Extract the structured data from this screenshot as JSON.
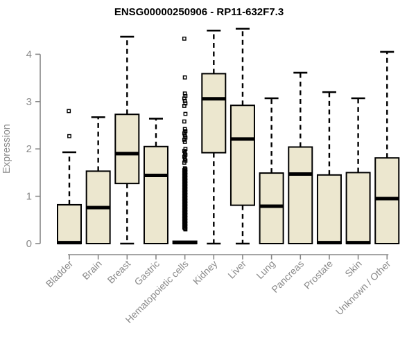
{
  "title": "ENSG00000250906 - RP11-632F7.3",
  "colors": {
    "box_fill": "#ece7cf",
    "box_stroke": "#000000",
    "axis_line": "#878787",
    "axis_text": "#8a8a8a",
    "title_text": "#000000"
  },
  "chart_data": {
    "type": "boxplot",
    "title": "ENSG00000250906 - RP11-632F7.3",
    "xlabel": "",
    "ylabel": "Expression",
    "ylim": [
      0,
      4.6
    ],
    "yticks": [
      0,
      1,
      2,
      3,
      4
    ],
    "grid": false,
    "legend": "none",
    "categories": [
      "Bladder",
      "Brain",
      "Breast",
      "Gastric",
      "Hematopoietic cells",
      "Kidney",
      "Liver",
      "Lung",
      "Pancreas",
      "Prostate",
      "Skin",
      "Unknown / Other"
    ],
    "series": [
      {
        "name": "Bladder",
        "whisker_low": 0,
        "q1": 0,
        "median": 0.02,
        "q3": 0.82,
        "whisker_high": 1.93,
        "outliers": [
          2.8,
          2.27
        ],
        "outlier_bands": []
      },
      {
        "name": "Brain",
        "whisker_low": 0,
        "q1": 0,
        "median": 0.76,
        "q3": 1.53,
        "whisker_high": 2.67,
        "outliers": [],
        "outlier_bands": []
      },
      {
        "name": "Breast",
        "whisker_low": 0,
        "q1": 1.27,
        "median": 1.9,
        "q3": 2.73,
        "whisker_high": 4.37,
        "outliers": [],
        "outlier_bands": []
      },
      {
        "name": "Gastric",
        "whisker_low": 0,
        "q1": 0,
        "median": 1.44,
        "q3": 2.05,
        "whisker_high": 2.64,
        "outliers": [],
        "outlier_bands": []
      },
      {
        "name": "Hematopoietic cells",
        "whisker_low": 0,
        "q1": 0,
        "median": 0.02,
        "q3": 0.05,
        "whisker_high": 0.05,
        "outliers": [
          4.33,
          3.51,
          2.74,
          2.58
        ],
        "outlier_bands": [
          {
            "from": 3.17,
            "to": 2.91,
            "count": 6
          },
          {
            "from": 2.42,
            "to": 2.15,
            "count": 7
          },
          {
            "from": 2.0,
            "to": 1.71,
            "count": 8
          },
          {
            "from": 1.59,
            "to": 0.3,
            "count": 65
          }
        ]
      },
      {
        "name": "Kidney",
        "whisker_low": 0,
        "q1": 1.92,
        "median": 3.06,
        "q3": 3.59,
        "whisker_high": 4.5,
        "outliers": [],
        "outlier_bands": []
      },
      {
        "name": "Liver",
        "whisker_low": 0,
        "q1": 0.81,
        "median": 2.21,
        "q3": 2.92,
        "whisker_high": 4.54,
        "outliers": [],
        "outlier_bands": []
      },
      {
        "name": "Lung",
        "whisker_low": 0,
        "q1": 0,
        "median": 0.79,
        "q3": 1.49,
        "whisker_high": 3.07,
        "outliers": [],
        "outlier_bands": []
      },
      {
        "name": "Pancreas",
        "whisker_low": 0,
        "q1": 0,
        "median": 1.47,
        "q3": 2.04,
        "whisker_high": 3.61,
        "outliers": [],
        "outlier_bands": []
      },
      {
        "name": "Prostate",
        "whisker_low": 0,
        "q1": 0,
        "median": 0.02,
        "q3": 1.45,
        "whisker_high": 3.2,
        "outliers": [],
        "outlier_bands": []
      },
      {
        "name": "Skin",
        "whisker_low": 0,
        "q1": 0,
        "median": 0.02,
        "q3": 1.5,
        "whisker_high": 3.07,
        "outliers": [],
        "outlier_bands": []
      },
      {
        "name": "Unknown / Other",
        "whisker_low": 0,
        "q1": 0,
        "median": 0.95,
        "q3": 1.81,
        "whisker_high": 4.05,
        "outliers": [],
        "outlier_bands": []
      }
    ]
  }
}
